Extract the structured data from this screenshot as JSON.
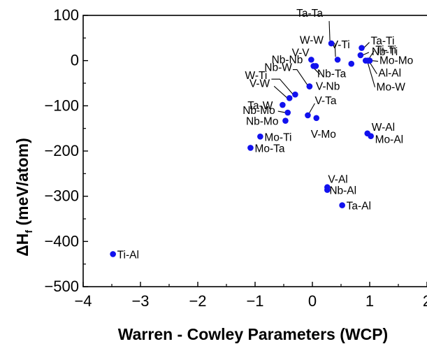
{
  "chart_data": {
    "type": "scatter",
    "title": "",
    "xlabel": "Warren - Cowley Parameters (WCP)",
    "ylabel_main": "ΔH",
    "ylabel_sub": "f",
    "ylabel_tail": " (meV/atom)",
    "xlim": [
      -4,
      2
    ],
    "ylim": [
      -500,
      100
    ],
    "xticks": [
      -4,
      -3,
      -2,
      -1,
      0,
      1,
      2
    ],
    "xtick_labels": [
      "−4",
      "−3",
      "−2",
      "−1",
      "0",
      "1",
      "2"
    ],
    "yticks": [
      -500,
      -400,
      -300,
      -200,
      -100,
      0,
      100
    ],
    "ytick_labels": [
      "−500",
      "−400",
      "−300",
      "−200",
      "−100",
      "0",
      "100"
    ],
    "grid": false,
    "marker_color": "#1111ee",
    "points": [
      {
        "label": "Ta-Ta",
        "x": 0.33,
        "y": 38
      },
      {
        "label": "W-W",
        "x": 0.44,
        "y": 2
      },
      {
        "label": "V-V",
        "x": 0.02,
        "y": -12
      },
      {
        "label": "Nb-Nb",
        "x": -0.02,
        "y": 2
      },
      {
        "label": "V-Ti",
        "x": 0.68,
        "y": -7
      },
      {
        "label": "Nb-Ta",
        "x": 0.06,
        "y": -12
      },
      {
        "label": "Ta-Ti",
        "x": 0.86,
        "y": 28
      },
      {
        "label": "Nb-Ti",
        "x": 0.84,
        "y": 12
      },
      {
        "label": "Ti-Ti",
        "x": 0.93,
        "y": 0
      },
      {
        "label": "Mo-Mo",
        "x": 1.0,
        "y": 0
      },
      {
        "label": "Al-Al",
        "x": 0.98,
        "y": 0
      },
      {
        "label": "Mo-W",
        "x": 0.97,
        "y": 0
      },
      {
        "label": "Nb-W",
        "x": -0.05,
        "y": -57
      },
      {
        "label": "V-Nb",
        "x": -0.05,
        "y": -57
      },
      {
        "label": "W-Ti",
        "x": -0.3,
        "y": -75
      },
      {
        "label": "V-W",
        "x": -0.4,
        "y": -83
      },
      {
        "label": "Ta-W",
        "x": -0.52,
        "y": -98
      },
      {
        "label": "Nb-Mo",
        "x": -0.43,
        "y": -115
      },
      {
        "label": "Nb-Mo",
        "x": -0.47,
        "y": -133
      },
      {
        "label": "V-Ta",
        "x": -0.08,
        "y": -121
      },
      {
        "label": "V-Mo",
        "x": 0.07,
        "y": -127
      },
      {
        "label": "W-Al",
        "x": 0.96,
        "y": -161
      },
      {
        "label": "Mo-Al",
        "x": 1.02,
        "y": -167
      },
      {
        "label": "Mo-Ti",
        "x": -0.91,
        "y": -168
      },
      {
        "label": "Mo-Ta",
        "x": -1.08,
        "y": -193
      },
      {
        "label": "V-Al",
        "x": 0.26,
        "y": -280
      },
      {
        "label": "Nb-Al",
        "x": 0.26,
        "y": -286
      },
      {
        "label": "Ta-Al",
        "x": 0.52,
        "y": -320
      },
      {
        "label": "Ti-Al",
        "x": -3.48,
        "y": -428
      }
    ]
  }
}
